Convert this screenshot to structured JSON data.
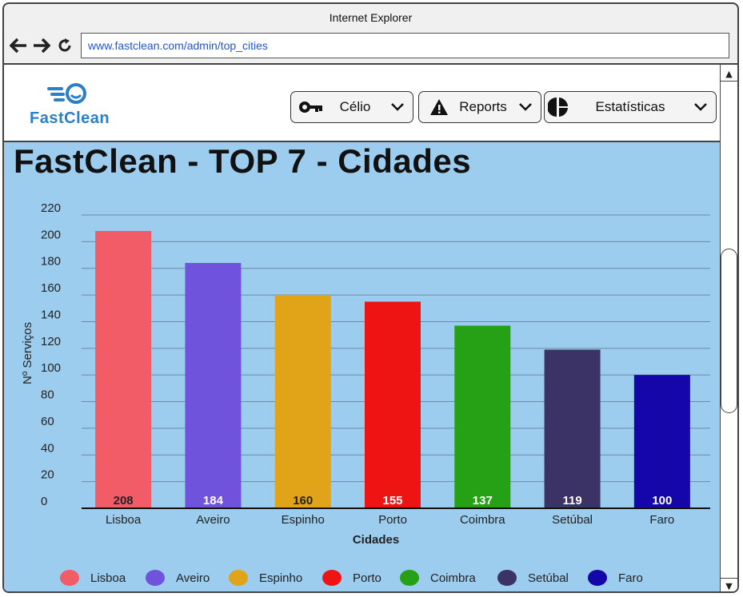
{
  "browser": {
    "title": "Internet Explorer",
    "url": "www.fastclean.com/admin/top_cities"
  },
  "header": {
    "logo_text": "FastClean",
    "menus": [
      {
        "label": "Célio",
        "icon": "key-icon"
      },
      {
        "label": "Reports",
        "icon": "warning-icon"
      },
      {
        "label": "Estatísticas",
        "icon": "pie-chart-icon"
      }
    ]
  },
  "page": {
    "title": "FastClean - TOP 7 - Cidades"
  },
  "chart_data": {
    "type": "bar",
    "categories": [
      "Lisboa",
      "Aveiro",
      "Espinho",
      "Porto",
      "Coimbra",
      "Setúbal",
      "Faro"
    ],
    "values": [
      208,
      184,
      160,
      155,
      137,
      119,
      100
    ],
    "colors": [
      "#f25c67",
      "#7053dc",
      "#e1a418",
      "#ef1414",
      "#26a115",
      "#3b3266",
      "#1406a8"
    ],
    "xlabel": "Cidades",
    "ylabel": "Nº Serviços",
    "ylim": [
      0,
      220
    ],
    "yticks": [
      0,
      20,
      40,
      60,
      80,
      100,
      120,
      140,
      160,
      180,
      200,
      220
    ],
    "grid": true,
    "legend": "bottom"
  }
}
